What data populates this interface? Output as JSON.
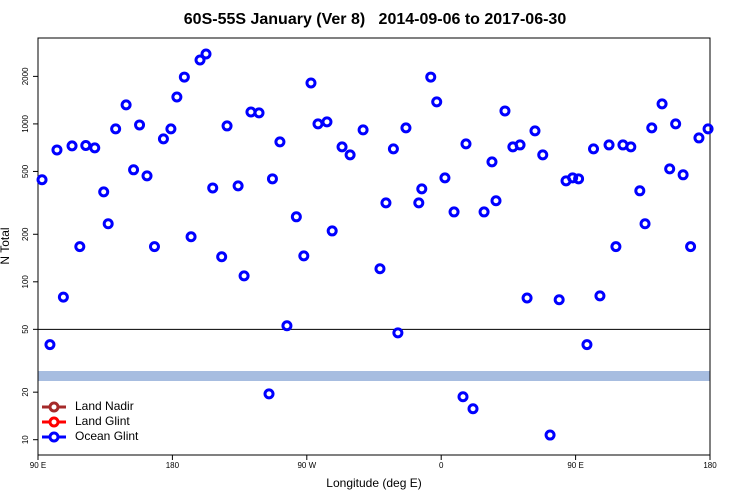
{
  "chart_data": {
    "type": "scatter",
    "title": "60S-55S January (Ver 8)   2014-09-06 to 2017-06-30",
    "x_label": "Longitude (deg E)",
    "y_label": "N Total",
    "log_y": true,
    "xlim": [
      90,
      540
    ],
    "ylim": [
      8,
      3500
    ],
    "xticks": [
      {
        "value": 90,
        "label": "90 E"
      },
      180,
      {
        "value": 270,
        "label": "90 W"
      },
      {
        "value": 360,
        "label": "0"
      },
      {
        "value": 450,
        "label": "90 E"
      },
      {
        "value": 540,
        "label": "180"
      }
    ],
    "yticks": [
      10,
      20,
      50,
      100,
      200,
      500,
      1000,
      2000
    ],
    "reference_line": 50,
    "legend": "bottom-left",
    "series": [
      {
        "name": "Land Nadir",
        "color": "#a52a2a",
        "x": [],
        "values": []
      },
      {
        "name": "Land Glint",
        "color": "#ff0000",
        "x": [],
        "values": []
      },
      {
        "name": "Ocean Glint",
        "color": "#0000ff",
        "x": [
          92.7,
          98,
          102.7,
          107,
          112.8,
          118,
          122,
          128,
          134,
          137,
          142,
          149,
          154,
          158,
          163,
          168,
          174,
          179,
          183,
          188,
          192.5,
          198.5,
          202.5,
          207,
          213,
          216.6,
          224,
          228,
          232.6,
          238,
          244.7,
          247,
          252,
          256.7,
          263,
          268,
          272.8,
          277.5,
          283.5,
          287,
          293.6,
          299,
          307.7,
          319,
          323,
          328,
          331,
          336.4,
          345,
          347,
          353,
          357,
          362.5,
          368.6,
          374.6,
          376.6,
          381.3,
          388.7,
          394,
          396.7,
          402.7,
          408,
          412.8,
          417.5,
          422.8,
          428,
          432.9,
          439,
          443.6,
          448,
          452,
          457.6,
          462,
          466.3,
          472.4,
          477,
          481.7,
          487,
          493,
          496.5,
          501,
          507.9,
          513,
          517,
          522,
          527,
          532.6,
          538.7
        ],
        "values": [
          443,
          40,
          684,
          80,
          726,
          167,
          730,
          705,
          371,
          233,
          930,
          1320,
          512,
          985,
          469,
          167,
          804,
          930,
          1480,
          1980,
          193,
          2540,
          2770,
          393,
          144,
          971,
          405,
          109,
          1190,
          1175,
          19.5,
          449,
          769,
          52.7,
          258,
          146,
          1817,
          1000,
          1030,
          210,
          715,
          637,
          916,
          121,
          316,
          695,
          47.5,
          944,
          316,
          388,
          1980,
          1378,
          455,
          277,
          18.7,
          747,
          15.7,
          277,
          575,
          326,
          1208,
          715,
          736,
          79,
          903,
          637,
          10.7,
          77,
          436,
          455,
          449,
          40,
          695,
          81.5,
          736,
          167,
          736,
          715,
          377,
          233,
          944,
          1340,
          519,
          1000,
          476,
          167,
          815,
          930
        ]
      }
    ]
  }
}
